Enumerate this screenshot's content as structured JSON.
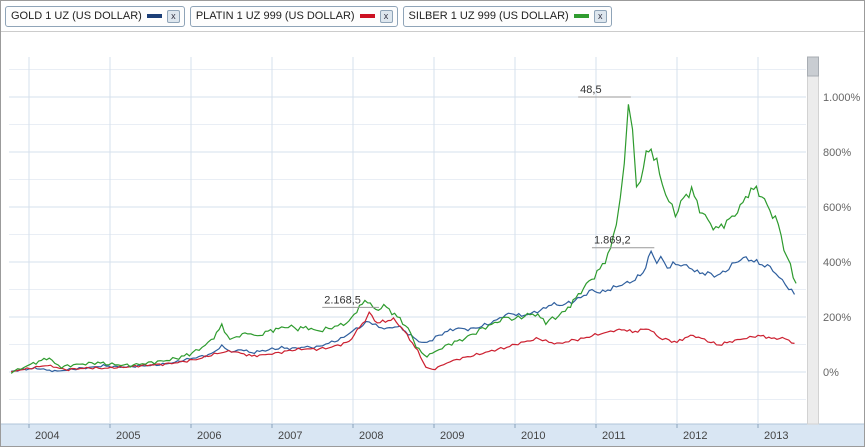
{
  "legend": [
    {
      "label": "GOLD 1 UZ (US DOLLAR)",
      "color": "#1c3f77",
      "close_label": "x"
    },
    {
      "label": "PLATIN 1 UZ 999 (US DOLLAR)",
      "color": "#cc1122",
      "close_label": "x"
    },
    {
      "label": "SILBER 1 UZ 999 (US DOLLAR)",
      "color": "#2e9b2e",
      "close_label": "x"
    }
  ],
  "chart_data": {
    "type": "line",
    "title": "",
    "xlabel": "",
    "ylabel": "",
    "x_unit": "year",
    "y_unit": "percent_change",
    "x_range": [
      2003.75,
      2013.55
    ],
    "y_range": [
      -180,
      1140
    ],
    "grid": "on",
    "legend_position": "top",
    "colors": {
      "axis_band": "#d9e6f3",
      "grid_major": "#d6e0ec",
      "grid_minor": "#e9eef5"
    },
    "xticks": [
      2004,
      2005,
      2006,
      2007,
      2008,
      2009,
      2010,
      2011,
      2012,
      2013
    ],
    "yticks": [
      {
        "pct": 0,
        "label": "0%"
      },
      {
        "pct": 200,
        "label": "200%"
      },
      {
        "pct": 400,
        "label": "400%"
      },
      {
        "pct": 600,
        "label": "600%"
      },
      {
        "pct": 800,
        "label": "800%"
      },
      {
        "pct": 1000,
        "label": "1.000%"
      }
    ],
    "annotations": [
      {
        "text": "48,5",
        "x1": 2010.78,
        "x2": 2011.43,
        "y_pct": 1000
      },
      {
        "text": "1.869,2",
        "x1": 2010.95,
        "x2": 2011.72,
        "y_pct": 452
      },
      {
        "text": "2.168,5",
        "x1": 2007.62,
        "x2": 2008.32,
        "y_pct": 235
      }
    ],
    "series": [
      {
        "id": "gold",
        "name": "GOLD 1 UZ (US DOLLAR)",
        "color": "#2f5f9e",
        "points": [
          [
            2003.78,
            2
          ],
          [
            2003.9,
            8
          ],
          [
            2004.0,
            11
          ],
          [
            2004.1,
            14
          ],
          [
            2004.22,
            7
          ],
          [
            2004.35,
            3
          ],
          [
            2004.5,
            9
          ],
          [
            2004.62,
            13
          ],
          [
            2004.78,
            17
          ],
          [
            2004.92,
            23
          ],
          [
            2005.05,
            19
          ],
          [
            2005.2,
            18
          ],
          [
            2005.35,
            22
          ],
          [
            2005.5,
            24
          ],
          [
            2005.65,
            28
          ],
          [
            2005.8,
            35
          ],
          [
            2005.95,
            46
          ],
          [
            2006.1,
            55
          ],
          [
            2006.25,
            65
          ],
          [
            2006.38,
            95
          ],
          [
            2006.5,
            72
          ],
          [
            2006.62,
            82
          ],
          [
            2006.75,
            70
          ],
          [
            2006.88,
            77
          ],
          [
            2007.0,
            83
          ],
          [
            2007.12,
            88
          ],
          [
            2007.25,
            85
          ],
          [
            2007.4,
            91
          ],
          [
            2007.55,
            90
          ],
          [
            2007.7,
            105
          ],
          [
            2007.85,
            120
          ],
          [
            2008.0,
            150
          ],
          [
            2008.12,
            170
          ],
          [
            2008.2,
            185
          ],
          [
            2008.32,
            162
          ],
          [
            2008.45,
            158
          ],
          [
            2008.55,
            168
          ],
          [
            2008.68,
            140
          ],
          [
            2008.78,
            118
          ],
          [
            2008.88,
            104
          ],
          [
            2008.98,
            118
          ],
          [
            2009.1,
            140
          ],
          [
            2009.2,
            152
          ],
          [
            2009.3,
            160
          ],
          [
            2009.42,
            154
          ],
          [
            2009.55,
            163
          ],
          [
            2009.7,
            178
          ],
          [
            2009.85,
            202
          ],
          [
            2009.95,
            214
          ],
          [
            2010.08,
            204
          ],
          [
            2010.2,
            213
          ],
          [
            2010.35,
            228
          ],
          [
            2010.45,
            248
          ],
          [
            2010.55,
            242
          ],
          [
            2010.7,
            254
          ],
          [
            2010.85,
            278
          ],
          [
            2010.95,
            298
          ],
          [
            2011.05,
            288
          ],
          [
            2011.18,
            302
          ],
          [
            2011.32,
            318
          ],
          [
            2011.45,
            330
          ],
          [
            2011.58,
            360
          ],
          [
            2011.68,
            438
          ],
          [
            2011.75,
            398
          ],
          [
            2011.8,
            420
          ],
          [
            2011.88,
            378
          ],
          [
            2011.95,
            392
          ],
          [
            2012.05,
            390
          ],
          [
            2012.15,
            382
          ],
          [
            2012.25,
            362
          ],
          [
            2012.38,
            358
          ],
          [
            2012.5,
            350
          ],
          [
            2012.6,
            368
          ],
          [
            2012.72,
            398
          ],
          [
            2012.82,
            415
          ],
          [
            2012.95,
            404
          ],
          [
            2013.05,
            390
          ],
          [
            2013.15,
            382
          ],
          [
            2013.22,
            358
          ],
          [
            2013.3,
            332
          ],
          [
            2013.38,
            305
          ],
          [
            2013.45,
            282
          ]
        ]
      },
      {
        "id": "platin",
        "name": "PLATIN 1 UZ 999 (US DOLLAR)",
        "color": "#cc2030",
        "points": [
          [
            2003.78,
            0
          ],
          [
            2003.9,
            8
          ],
          [
            2004.05,
            15
          ],
          [
            2004.2,
            24
          ],
          [
            2004.3,
            20
          ],
          [
            2004.45,
            8
          ],
          [
            2004.6,
            12
          ],
          [
            2004.75,
            15
          ],
          [
            2004.9,
            13
          ],
          [
            2005.05,
            16
          ],
          [
            2005.2,
            18
          ],
          [
            2005.35,
            22
          ],
          [
            2005.5,
            26
          ],
          [
            2005.65,
            28
          ],
          [
            2005.8,
            33
          ],
          [
            2005.95,
            40
          ],
          [
            2006.1,
            48
          ],
          [
            2006.25,
            62
          ],
          [
            2006.4,
            72
          ],
          [
            2006.5,
            76
          ],
          [
            2006.62,
            68
          ],
          [
            2006.75,
            58
          ],
          [
            2006.88,
            62
          ],
          [
            2007.0,
            66
          ],
          [
            2007.12,
            72
          ],
          [
            2007.25,
            80
          ],
          [
            2007.4,
            84
          ],
          [
            2007.55,
            83
          ],
          [
            2007.7,
            88
          ],
          [
            2007.85,
            100
          ],
          [
            2007.95,
            110
          ],
          [
            2008.05,
            150
          ],
          [
            2008.15,
            190
          ],
          [
            2008.2,
            215
          ],
          [
            2008.3,
            178
          ],
          [
            2008.4,
            185
          ],
          [
            2008.5,
            192
          ],
          [
            2008.6,
            162
          ],
          [
            2008.7,
            120
          ],
          [
            2008.8,
            75
          ],
          [
            2008.9,
            18
          ],
          [
            2008.98,
            8
          ],
          [
            2009.08,
            22
          ],
          [
            2009.2,
            38
          ],
          [
            2009.32,
            48
          ],
          [
            2009.45,
            58
          ],
          [
            2009.6,
            68
          ],
          [
            2009.75,
            80
          ],
          [
            2009.9,
            90
          ],
          [
            2010.0,
            100
          ],
          [
            2010.15,
            112
          ],
          [
            2010.3,
            122
          ],
          [
            2010.42,
            108
          ],
          [
            2010.55,
            103
          ],
          [
            2010.7,
            115
          ],
          [
            2010.85,
            122
          ],
          [
            2010.95,
            132
          ],
          [
            2011.1,
            142
          ],
          [
            2011.22,
            150
          ],
          [
            2011.35,
            155
          ],
          [
            2011.45,
            145
          ],
          [
            2011.55,
            152
          ],
          [
            2011.65,
            158
          ],
          [
            2011.78,
            125
          ],
          [
            2011.9,
            115
          ],
          [
            2012.0,
            108
          ],
          [
            2012.1,
            125
          ],
          [
            2012.2,
            133
          ],
          [
            2012.3,
            122
          ],
          [
            2012.42,
            108
          ],
          [
            2012.52,
            98
          ],
          [
            2012.65,
            110
          ],
          [
            2012.78,
            118
          ],
          [
            2012.9,
            126
          ],
          [
            2013.0,
            132
          ],
          [
            2013.1,
            128
          ],
          [
            2013.2,
            120
          ],
          [
            2013.3,
            125
          ],
          [
            2013.38,
            115
          ],
          [
            2013.45,
            104
          ]
        ]
      },
      {
        "id": "silber",
        "name": "SILBER 1 UZ 999 (US DOLLAR)",
        "color": "#2e9b2e",
        "points": [
          [
            2003.78,
            0
          ],
          [
            2003.9,
            12
          ],
          [
            2004.02,
            28
          ],
          [
            2004.12,
            38
          ],
          [
            2004.25,
            52
          ],
          [
            2004.32,
            30
          ],
          [
            2004.4,
            18
          ],
          [
            2004.55,
            26
          ],
          [
            2004.7,
            30
          ],
          [
            2004.85,
            34
          ],
          [
            2004.95,
            30
          ],
          [
            2005.1,
            26
          ],
          [
            2005.25,
            24
          ],
          [
            2005.4,
            30
          ],
          [
            2005.55,
            36
          ],
          [
            2005.7,
            42
          ],
          [
            2005.85,
            52
          ],
          [
            2005.98,
            65
          ],
          [
            2006.1,
            82
          ],
          [
            2006.25,
            115
          ],
          [
            2006.38,
            168
          ],
          [
            2006.48,
            118
          ],
          [
            2006.6,
            132
          ],
          [
            2006.7,
            142
          ],
          [
            2006.82,
            130
          ],
          [
            2006.95,
            148
          ],
          [
            2007.08,
            158
          ],
          [
            2007.2,
            166
          ],
          [
            2007.32,
            158
          ],
          [
            2007.45,
            162
          ],
          [
            2007.55,
            148
          ],
          [
            2007.7,
            158
          ],
          [
            2007.85,
            172
          ],
          [
            2007.95,
            182
          ],
          [
            2008.08,
            238
          ],
          [
            2008.18,
            262
          ],
          [
            2008.28,
            222
          ],
          [
            2008.38,
            242
          ],
          [
            2008.48,
            218
          ],
          [
            2008.58,
            192
          ],
          [
            2008.68,
            158
          ],
          [
            2008.78,
            95
          ],
          [
            2008.88,
            58
          ],
          [
            2008.98,
            68
          ],
          [
            2009.1,
            88
          ],
          [
            2009.22,
            105
          ],
          [
            2009.35,
            118
          ],
          [
            2009.48,
            138
          ],
          [
            2009.6,
            158
          ],
          [
            2009.75,
            178
          ],
          [
            2009.88,
            198
          ],
          [
            2010.0,
            192
          ],
          [
            2010.12,
            205
          ],
          [
            2010.25,
            212
          ],
          [
            2010.38,
            182
          ],
          [
            2010.5,
            198
          ],
          [
            2010.62,
            222
          ],
          [
            2010.75,
            268
          ],
          [
            2010.88,
            318
          ],
          [
            2010.98,
            348
          ],
          [
            2011.08,
            388
          ],
          [
            2011.18,
            448
          ],
          [
            2011.25,
            540
          ],
          [
            2011.3,
            640
          ],
          [
            2011.35,
            760
          ],
          [
            2011.4,
            985
          ],
          [
            2011.45,
            870
          ],
          [
            2011.5,
            660
          ],
          [
            2011.55,
            705
          ],
          [
            2011.62,
            788
          ],
          [
            2011.68,
            812
          ],
          [
            2011.75,
            762
          ],
          [
            2011.82,
            678
          ],
          [
            2011.9,
            622
          ],
          [
            2011.98,
            572
          ],
          [
            2012.08,
            632
          ],
          [
            2012.18,
            662
          ],
          [
            2012.28,
            592
          ],
          [
            2012.38,
            552
          ],
          [
            2012.48,
            518
          ],
          [
            2012.58,
            538
          ],
          [
            2012.68,
            562
          ],
          [
            2012.78,
            598
          ],
          [
            2012.88,
            652
          ],
          [
            2012.98,
            668
          ],
          [
            2013.08,
            622
          ],
          [
            2013.18,
            572
          ],
          [
            2013.25,
            538
          ],
          [
            2013.32,
            452
          ],
          [
            2013.4,
            382
          ],
          [
            2013.47,
            322
          ]
        ]
      }
    ]
  }
}
